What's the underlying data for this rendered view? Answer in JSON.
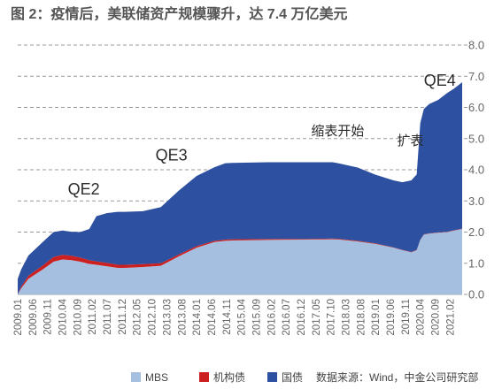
{
  "chart_data": {
    "type": "area",
    "title": "图 2：疫情后，美联储资产规模骤升，达 7.4 万亿美元",
    "source": "数据来源：Wind，中金公司研究部",
    "stacked": true,
    "y_axis_position": "right",
    "ylim": [
      0,
      8
    ],
    "yticks": [
      "0.0",
      "1.0",
      "2.0",
      "3.0",
      "4.0",
      "5.0",
      "6.0",
      "7.0",
      "8.0"
    ],
    "xtick_labels": [
      "2009.01",
      "2009.06",
      "2009.11",
      "2010.04",
      "2010.09",
      "2011.02",
      "2011.07",
      "2011.12",
      "2012.05",
      "2012.10",
      "2013.03",
      "2013.08",
      "2014.01",
      "2014.06",
      "2014.11",
      "2015.04",
      "2015.09",
      "2016.02",
      "2016.07",
      "2016.12",
      "2017.05",
      "2017.10",
      "2018.03",
      "2018.08",
      "2019.01",
      "2019.06",
      "2019.11",
      "2020.04",
      "2020.09",
      "2021.02"
    ],
    "x": [
      2009.0,
      2009.1,
      2009.3,
      2009.7,
      2010.0,
      2010.25,
      2010.5,
      2010.75,
      2011.0,
      2011.2,
      2011.5,
      2011.8,
      2012.0,
      2012.5,
      2013.0,
      2013.5,
      2014.0,
      2014.5,
      2014.8,
      2015.0,
      2016.0,
      2017.0,
      2017.8,
      2018.0,
      2018.5,
      2019.0,
      2019.5,
      2019.75,
      2020.0,
      2020.15,
      2020.25,
      2020.35,
      2020.5,
      2020.75,
      2021.0,
      2021.2,
      2021.42
    ],
    "series": [
      {
        "name": "MBS",
        "color": "#a5bfe0",
        "values": [
          0.0,
          0.2,
          0.5,
          0.8,
          1.05,
          1.12,
          1.1,
          1.05,
          0.98,
          0.95,
          0.9,
          0.85,
          0.85,
          0.88,
          0.92,
          1.22,
          1.5,
          1.68,
          1.72,
          1.73,
          1.75,
          1.76,
          1.77,
          1.76,
          1.7,
          1.62,
          1.5,
          1.42,
          1.35,
          1.42,
          1.75,
          1.92,
          1.95,
          1.98,
          2.0,
          2.05,
          2.1
        ]
      },
      {
        "name": "机构债",
        "color": "#cc1f1f",
        "values": [
          0.0,
          0.06,
          0.1,
          0.13,
          0.15,
          0.15,
          0.14,
          0.13,
          0.12,
          0.11,
          0.11,
          0.1,
          0.1,
          0.09,
          0.08,
          0.06,
          0.05,
          0.04,
          0.04,
          0.04,
          0.03,
          0.02,
          0.02,
          0.02,
          0.02,
          0.02,
          0.01,
          0.01,
          0.01,
          0.01,
          0.01,
          0.01,
          0.01,
          0.01,
          0.01,
          0.01,
          0.01
        ]
      },
      {
        "name": "国债",
        "color": "#2d50a0",
        "values": [
          0.5,
          0.55,
          0.65,
          0.75,
          0.8,
          0.78,
          0.77,
          0.82,
          1.0,
          1.45,
          1.6,
          1.7,
          1.7,
          1.7,
          1.8,
          2.05,
          2.25,
          2.36,
          2.45,
          2.45,
          2.46,
          2.46,
          2.45,
          2.42,
          2.35,
          2.2,
          2.15,
          2.17,
          2.3,
          2.42,
          3.74,
          4.02,
          4.15,
          4.25,
          4.45,
          4.55,
          4.7
        ]
      }
    ],
    "annotations": [
      {
        "text": "QE2",
        "x": 2010.4,
        "y": 3.2
      },
      {
        "text": "QE3",
        "x": 2012.85,
        "y": 4.3
      },
      {
        "text": "缩表开始",
        "x": 2017.2,
        "y": 5.1
      },
      {
        "text": "扩表",
        "x": 2019.6,
        "y": 4.8
      },
      {
        "text": "QE4",
        "x": 2020.35,
        "y": 6.7
      }
    ]
  }
}
